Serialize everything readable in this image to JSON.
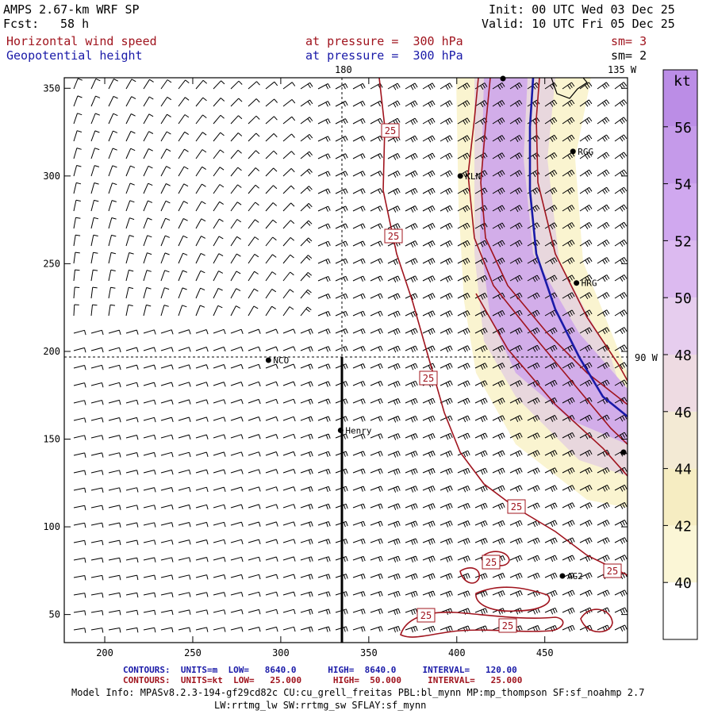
{
  "header": {
    "model": "AMPS 2.67-km WRF SP",
    "fcst_label": "Fcst:",
    "fcst_value": "58 h",
    "init": "Init: 00 UTC Wed 03 Dec 25",
    "valid": "Valid: 10 UTC Fri 05 Dec 25",
    "field1": "Horizontal wind speed",
    "field1_level": "at pressure =  300 hPa",
    "field1_sm": "sm= 3",
    "field2": "Geopotential height",
    "field2_level": "at pressure =  300 hPa",
    "field2_sm": "sm= 2"
  },
  "colors": {
    "wind_contour": "#a0141e",
    "height_contour": "#1a1aa8",
    "purple": "#c9a6e8",
    "yellow": "#f8f0c0"
  },
  "chart_data": {
    "type": "contour",
    "x_ticks": [
      200,
      250,
      300,
      350,
      400,
      450
    ],
    "y_ticks": [
      50,
      100,
      150,
      200,
      250,
      300,
      350
    ],
    "xlim": [
      177,
      497
    ],
    "ylim": [
      34,
      356
    ],
    "grid": false,
    "meridian_labels": [
      "180",
      "135 W",
      "90 W"
    ],
    "stations": [
      {
        "name": "NCO",
        "x": 293,
        "y": 195
      },
      {
        "name": "Henry",
        "x": 334,
        "y": 155
      },
      {
        "name": "KLN",
        "x": 402,
        "y": 300
      },
      {
        "name": "RGG",
        "x": 466,
        "y": 314
      },
      {
        "name": "HRG",
        "x": 468,
        "y": 239
      },
      {
        "name": "AG2",
        "x": 460,
        "y": 72
      }
    ],
    "contour_labels": [
      "25",
      "25",
      "25",
      "25",
      "25",
      "25",
      "25",
      "25"
    ],
    "colorbar": {
      "unit": "kt",
      "levels": [
        40,
        42,
        44,
        46,
        48,
        50,
        52,
        54,
        56
      ],
      "colors": [
        "#ffffff",
        "#fbf6d6",
        "#f6edc2",
        "#f3ead4",
        "#eedbe2",
        "#e6cdee",
        "#dcbaf0",
        "#d0a8ef",
        "#c59aea",
        "#bb8de6"
      ]
    }
  },
  "footer": {
    "line1_a": "CONTOURS:  UNITS=m  LOW=   8640.0      HIGH=  8640.0     INTERVAL=   120.00",
    "line1_b": "CONTOURS:  UNITS=kt  LOW=   25.000      HIGH=  50.000     INTERVAL=   25.000",
    "model_info": "Model Info: MPASv8.2.3-194-gf29cd82c CU:cu_grell_freitas PBL:bl_mynn MP:mp_thompson SF:sf_noahmp 2.7",
    "model_info2": "LW:rrtmg_lw SW:rrtmg_sw SFLAY:sf_mynn"
  }
}
